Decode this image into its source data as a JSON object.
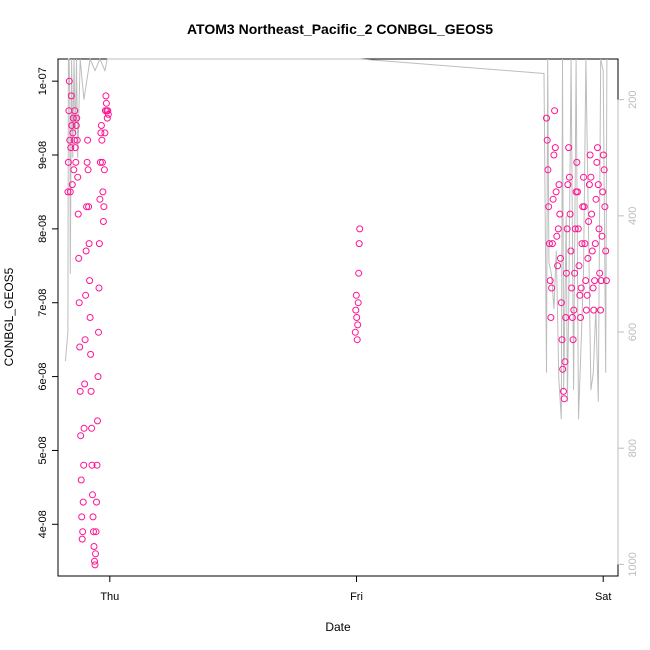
{
  "chart_data": {
    "type": "scatter",
    "title": "ATOM3 Northeast_Pacific_2 CONBGL_GEOS5",
    "xlabel": "Date",
    "ylabel": "CONBGL_GEOS5",
    "x_ticks": [
      "Thu",
      "Fri",
      "Sat"
    ],
    "y_ticks": [
      "4e-08",
      "5e-08",
      "6e-08",
      "7e-08",
      "8e-08",
      "9e-08",
      "1e-07"
    ],
    "y_tick_values": [
      4e-08,
      5e-08,
      6e-08,
      7e-08,
      8e-08,
      9e-08,
      1e-07
    ],
    "ylim": [
      3.3e-08,
      1.03e-07
    ],
    "right_axis_ticks": [
      "200",
      "400",
      "600",
      "800",
      "1000"
    ],
    "right_axis_values": [
      200,
      400,
      600,
      800,
      1000
    ],
    "right_axis_range": [
      1020,
      130
    ],
    "colors": {
      "points": "#ff1493",
      "pressure_line": "#bdbdbd",
      "right_axis": "#bdbdbd"
    },
    "grid": false,
    "xlim": [
      -0.21,
      2.06
    ],
    "series": [
      {
        "kind": "points",
        "x": [
          -0.17,
          -0.168,
          -0.166,
          -0.164,
          -0.162,
          -0.16,
          -0.158,
          -0.156,
          -0.154,
          -0.152,
          -0.15,
          -0.148,
          -0.146,
          -0.144,
          -0.142,
          -0.14,
          -0.138,
          -0.136,
          -0.134,
          -0.132,
          -0.13,
          -0.128,
          -0.126,
          -0.124,
          -0.122,
          -0.12,
          -0.118,
          -0.116,
          -0.114,
          -0.112,
          -0.11,
          -0.108,
          -0.106,
          -0.104,
          -0.102,
          -0.1,
          -0.098,
          -0.096,
          -0.094,
          -0.092,
          -0.09,
          -0.088,
          -0.086,
          -0.084,
          -0.082,
          -0.08,
          -0.078,
          -0.076,
          -0.074,
          -0.072,
          -0.07,
          -0.068,
          -0.066,
          -0.064,
          -0.062,
          -0.06,
          -0.058,
          -0.056,
          -0.054,
          -0.052,
          -0.05,
          -0.048,
          -0.046,
          -0.044,
          -0.042,
          -0.04,
          -0.038,
          -0.036,
          -0.034,
          -0.032,
          -0.03,
          -0.028,
          -0.026,
          -0.024,
          -0.022,
          -0.02,
          -0.018,
          -0.016,
          -0.014,
          -0.012,
          -0.01,
          -0.008,
          -0.006,
          0.995,
          0.997,
          0.999,
          1.001,
          1.003,
          1.005,
          1.007,
          1.009,
          1.011,
          1.013,
          1.77,
          1.773,
          1.776,
          1.779,
          1.782,
          1.785,
          1.788,
          1.791,
          1.794,
          1.797,
          1.8,
          1.803,
          1.806,
          1.809,
          1.812,
          1.815,
          1.818,
          1.821,
          1.824,
          1.827,
          1.83,
          1.833,
          1.836,
          1.839,
          1.842,
          1.845,
          1.848,
          1.851,
          1.854,
          1.857,
          1.86,
          1.863,
          1.866,
          1.869,
          1.872,
          1.875,
          1.878,
          1.881,
          1.884,
          1.887,
          1.89,
          1.893,
          1.896,
          1.899,
          1.902,
          1.905,
          1.908,
          1.911,
          1.914,
          1.917,
          1.92,
          1.923,
          1.926,
          1.929,
          1.932,
          1.935,
          1.938,
          1.941,
          1.944,
          1.947,
          1.95,
          1.953,
          1.956,
          1.959,
          1.962,
          1.965,
          1.968,
          1.971,
          1.974,
          1.977,
          1.98,
          1.983,
          1.986,
          1.989,
          1.992,
          1.995,
          1.998,
          2.001,
          2.004,
          2.007,
          2.01,
          2.013
        ],
        "y": [
          8.5e-08,
          8.9e-08,
          9.6e-08,
          1e-07,
          9.2e-08,
          8.5e-08,
          9.1e-08,
          9.8e-08,
          9.4e-08,
          8.6e-08,
          9.3e-08,
          9.5e-08,
          8.8e-08,
          9.2e-08,
          9.6e-08,
          9.1e-08,
          8.9e-08,
          9.4e-08,
          9.5e-08,
          9.2e-08,
          8.7e-08,
          8.2e-08,
          7.6e-08,
          7e-08,
          6.4e-08,
          5.8e-08,
          5.2e-08,
          4.6e-08,
          4.1e-08,
          3.8e-08,
          3.9e-08,
          4.3e-08,
          4.8e-08,
          5.3e-08,
          5.9e-08,
          6.5e-08,
          7.1e-08,
          7.7e-08,
          8.3e-08,
          8.9e-08,
          9.2e-08,
          8.8e-08,
          8.3e-08,
          7.8e-08,
          7.3e-08,
          6.8e-08,
          6.3e-08,
          5.8e-08,
          5.3e-08,
          4.8e-08,
          4.4e-08,
          4.1e-08,
          3.9e-08,
          3.7e-08,
          3.5e-08,
          3.45e-08,
          3.6e-08,
          3.9e-08,
          4.3e-08,
          4.8e-08,
          5.4e-08,
          6e-08,
          6.6e-08,
          7.2e-08,
          7.8e-08,
          8.4e-08,
          8.9e-08,
          9.3e-08,
          9.4e-08,
          9.2e-08,
          8.9e-08,
          8.5e-08,
          8.1e-08,
          8.3e-08,
          8.8e-08,
          9.3e-08,
          9.6e-08,
          9.8e-08,
          9.7e-08,
          9.6e-08,
          9.5e-08,
          9.6e-08,
          9.55e-08,
          6.6e-08,
          6.9e-08,
          7.1e-08,
          6.8e-08,
          6.5e-08,
          6.7e-08,
          7e-08,
          7.4e-08,
          7.8e-08,
          8e-08,
          9.5e-08,
          9.2e-08,
          8.8e-08,
          8.3e-08,
          7.8e-08,
          7.3e-08,
          6.8e-08,
          7.2e-08,
          7.8e-08,
          8.4e-08,
          9e-08,
          9.6e-08,
          9.1e-08,
          8.5e-08,
          7.9e-08,
          7.5e-08,
          8e-08,
          8.6e-08,
          8.2e-08,
          7.6e-08,
          7e-08,
          6.5e-08,
          6.1e-08,
          5.8e-08,
          5.7e-08,
          6.2e-08,
          6.8e-08,
          7.4e-08,
          8e-08,
          8.6e-08,
          9.1e-08,
          8.7e-08,
          8.2e-08,
          7.7e-08,
          7.2e-08,
          6.8e-08,
          6.5e-08,
          6.9e-08,
          7.4e-08,
          8e-08,
          8.5e-08,
          8.9e-08,
          8.5e-08,
          8e-08,
          7.5e-08,
          7.1e-08,
          6.8e-08,
          7.2e-08,
          7.8e-08,
          8.3e-08,
          8.7e-08,
          8.3e-08,
          7.8e-08,
          7.3e-08,
          6.9e-08,
          7.1e-08,
          7.6e-08,
          8.1e-08,
          8.6e-08,
          9e-08,
          8.7e-08,
          8.2e-08,
          7.7e-08,
          7.2e-08,
          6.9e-08,
          7.3e-08,
          7.8e-08,
          8.4e-08,
          8.9e-08,
          9.1e-08,
          8.6e-08,
          8e-08,
          7.4e-08,
          6.9e-08,
          7.3e-08,
          7.9e-08,
          8.5e-08,
          9e-08,
          8.8e-08,
          8.3e-08,
          7.7e-08,
          7.3e-08
        ]
      },
      {
        "kind": "pressure_line",
        "x": [
          -0.18,
          -0.17,
          -0.168,
          -0.165,
          -0.162,
          -0.16,
          -0.155,
          -0.15,
          -0.145,
          -0.14,
          -0.135,
          -0.13,
          -0.12,
          -0.105,
          -0.08,
          -0.06,
          -0.04,
          -0.02,
          -0.01,
          -0.005,
          -0.002,
          0.98,
          0.99,
          0.99,
          1.01,
          1.012,
          1.015,
          1.76,
          1.765,
          1.77,
          1.775,
          1.78,
          1.79,
          1.8,
          1.81,
          1.82,
          1.83,
          1.835,
          1.84,
          1.85,
          1.855,
          1.86,
          1.87,
          1.88,
          1.89,
          1.9,
          1.92,
          1.93,
          1.95,
          1.96,
          1.97,
          1.98,
          1.99,
          2.0,
          2.01,
          2.015
        ],
        "y": [
          650,
          600,
          130,
          130,
          200,
          500,
          130,
          300,
          130,
          260,
          130,
          300,
          130,
          200,
          130,
          150,
          130,
          150,
          130,
          130,
          130,
          130,
          130,
          130,
          130,
          130,
          130,
          155,
          400,
          670,
          130,
          480,
          500,
          560,
          460,
          680,
          750,
          130,
          700,
          400,
          720,
          560,
          130,
          700,
          130,
          750,
          500,
          130,
          700,
          670,
          560,
          720,
          130,
          150,
          670,
          130
        ]
      }
    ]
  }
}
